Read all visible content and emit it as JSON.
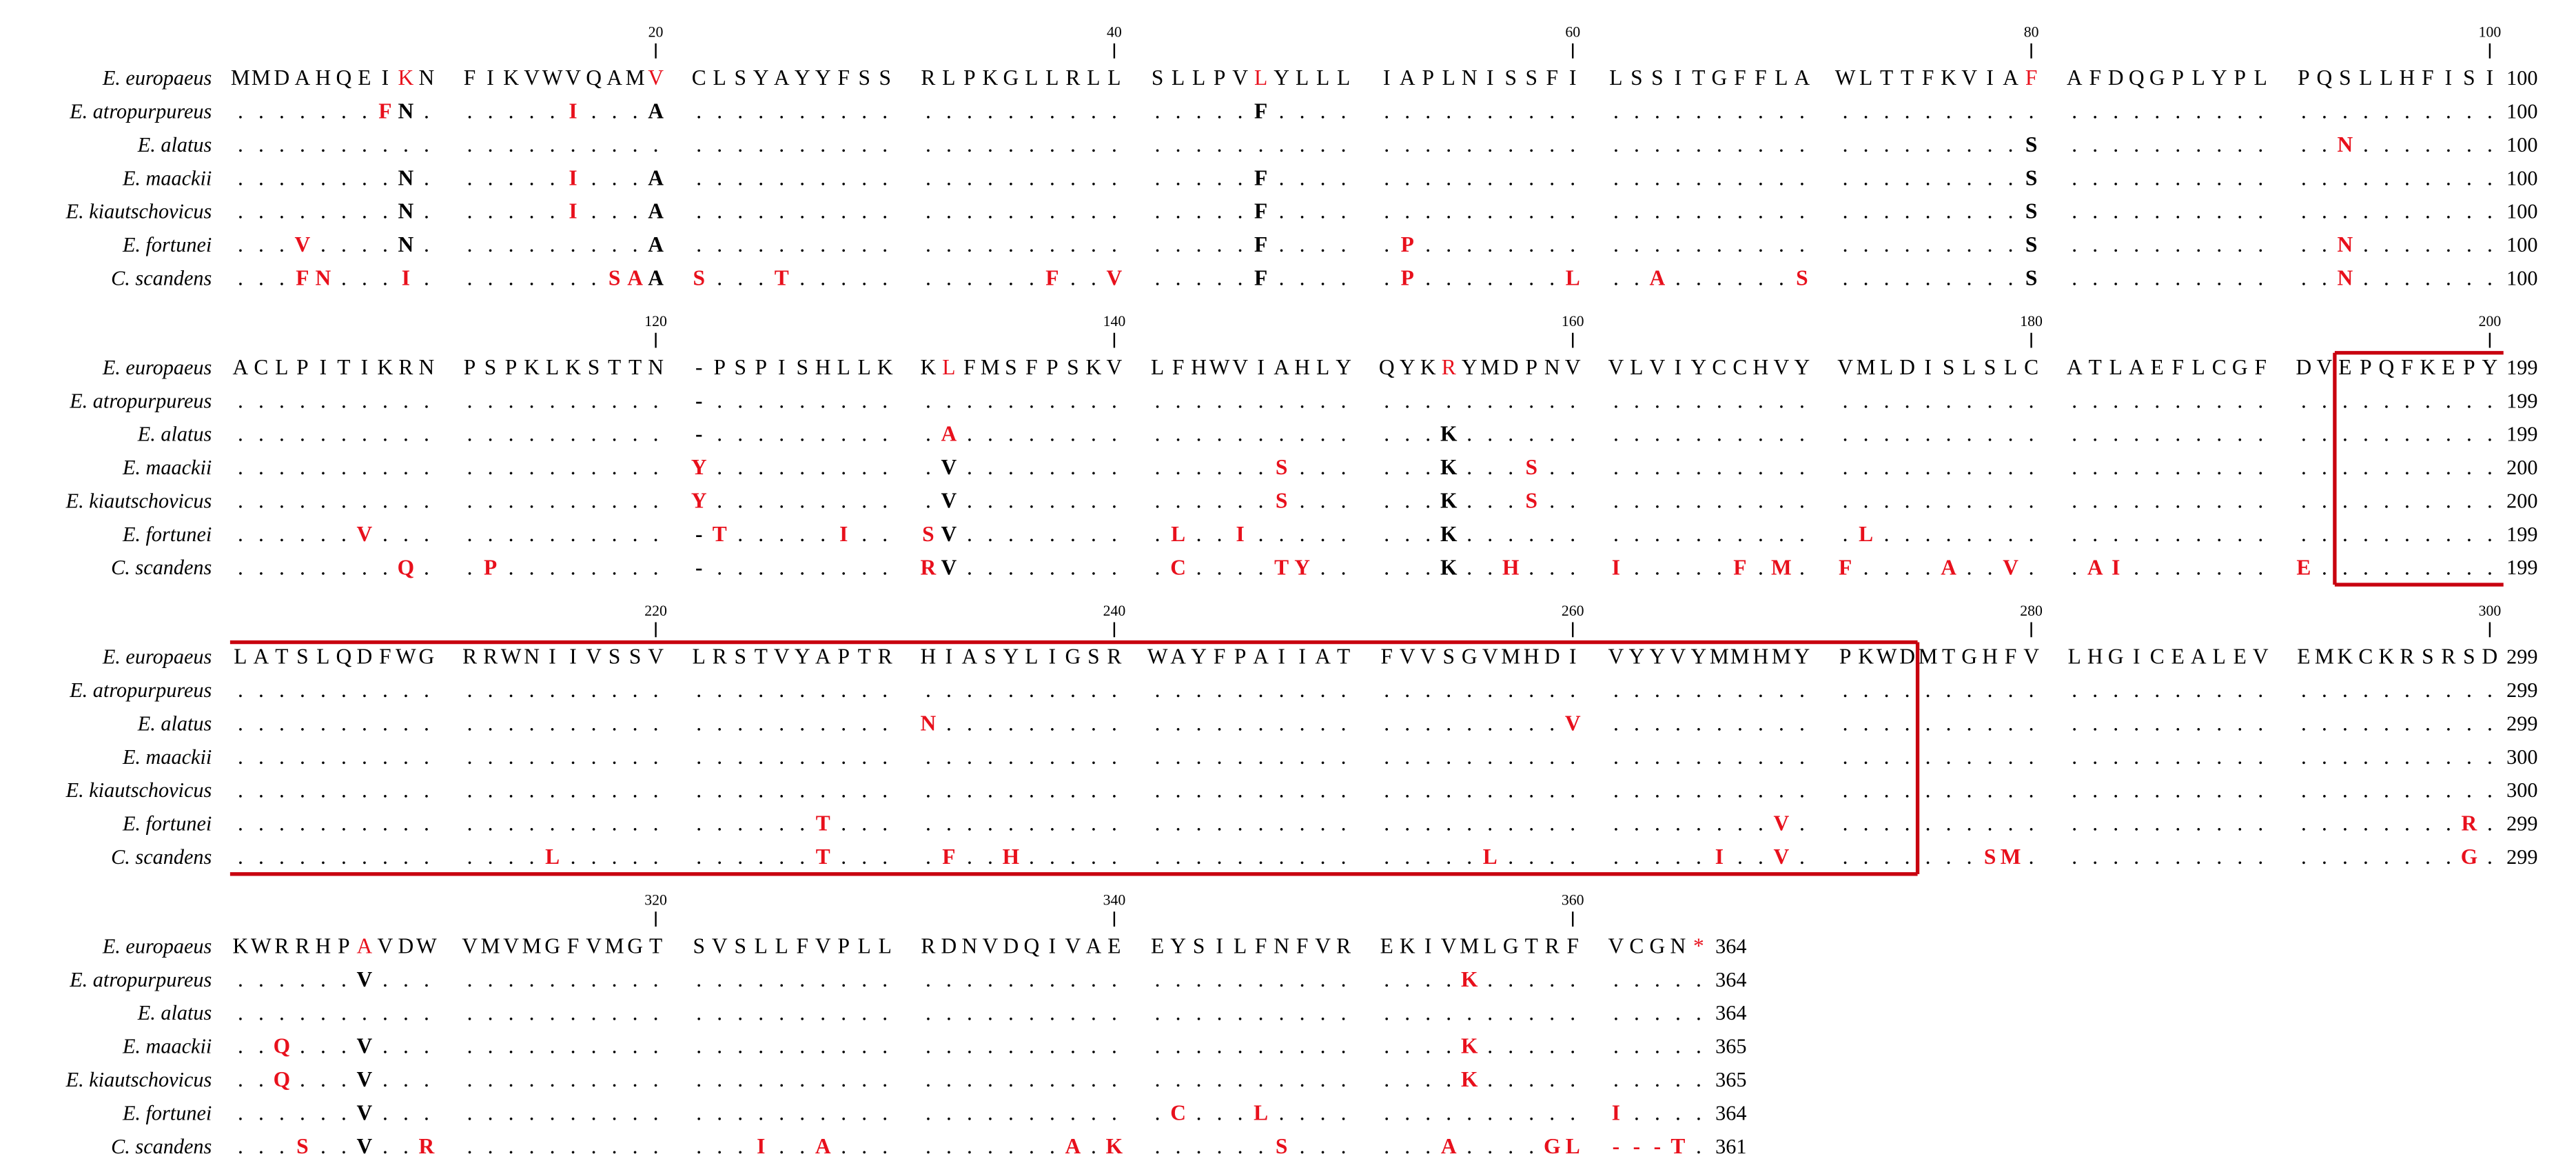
{
  "alignment": {
    "species": [
      "E. europaeus",
      "E. atropurpureus",
      "E. alatus",
      "E. maackii",
      "E. kiautschovicus",
      "E. fortunei",
      "C. scandens"
    ],
    "highlight_color": "#e8101c",
    "box_color": "#c8000f",
    "blocks": [
      {
        "ticks": [
          20,
          40,
          60,
          80,
          100
        ],
        "rows": [
          {
            "groups": [
              "MMDAHQEIKN",
              "FIKVWVQAMV",
              "CLSYAYYFSS",
              "RLPKGLLRLL",
              "SLLPVLYLLL",
              "IAPLNISSFI",
              "LSSITGFFLA",
              "WLTTFKVIAF",
              "AFDQGPLYPL",
              "PQSLLHFISI"
            ],
            "red": [
              9,
              20,
              46,
              80
            ],
            "count": 100
          },
          {
            "groups": [
              ".......FN.",
              ".....I...A",
              "..........",
              "..........",
              ".....F....",
              "..........",
              "..........",
              "..........",
              "..........",
              ".........."
            ],
            "red": [
              8,
              16
            ],
            "count": 100
          },
          {
            "groups": [
              "..........",
              "..........",
              "..........",
              "..........",
              "..........",
              "..........",
              "..........",
              ".........S",
              "..........",
              "..N......."
            ],
            "red": [
              93
            ],
            "count": 100
          },
          {
            "groups": [
              "........N.",
              ".....I...A",
              "..........",
              "..........",
              ".....F....",
              "..........",
              "..........",
              ".........S",
              "..........",
              ".........."
            ],
            "red": [
              16
            ],
            "count": 100
          },
          {
            "groups": [
              "........N.",
              ".....I...A",
              "..........",
              "..........",
              ".....F....",
              "..........",
              "..........",
              ".........S",
              "..........",
              ".........."
            ],
            "red": [
              16
            ],
            "count": 100
          },
          {
            "groups": [
              "...V....N.",
              ".........A",
              "..........",
              "..........",
              ".....F....",
              ".P........",
              "..........",
              ".........S",
              "..........",
              "..N......."
            ],
            "red": [
              4,
              52,
              93
            ],
            "count": 100
          },
          {
            "groups": [
              "...FN...I.",
              ".......SAA",
              "S...T.....",
              "......F..V",
              ".....F....",
              ".P.......L",
              "..A......S",
              ".........S",
              "..........",
              "..N......."
            ],
            "red": [
              4,
              5,
              9,
              18,
              19,
              21,
              25,
              37,
              40,
              52,
              60,
              63,
              70,
              93
            ],
            "count": 100
          }
        ]
      },
      {
        "ticks": [
          120,
          140,
          160,
          180,
          200
        ],
        "rows": [
          {
            "groups": [
              "ACLPITIKRN",
              "PSPKLKSTTN",
              "-PSPISHLLK",
              "KLFMSFPSKV",
              "LFHWVIAHLY",
              "QYKRYMDPNV",
              "VLVIYCCHVY",
              "VMLDISLSLC",
              "ATLAEFLCGF",
              "DVEPQFKEPY"
            ],
            "red": [
              32,
              54
            ],
            "count": 199
          },
          {
            "groups": [
              "..........",
              "..........",
              "-.........",
              "..........",
              "..........",
              "..........",
              "..........",
              "..........",
              "..........",
              ".........."
            ],
            "red": [],
            "count": 199
          },
          {
            "groups": [
              "..........",
              "..........",
              "-.........",
              ".A........",
              "..........",
              "...K......",
              "..........",
              "..........",
              "..........",
              ".........."
            ],
            "red": [
              32
            ],
            "count": 199
          },
          {
            "groups": [
              "..........",
              "..........",
              "Y.........",
              ".V........",
              "......S...",
              "...K...S..",
              "..........",
              "..........",
              "..........",
              ".........."
            ],
            "red": [
              21,
              47,
              58
            ],
            "count": 200
          },
          {
            "groups": [
              "..........",
              "..........",
              "Y.........",
              ".V........",
              "......S...",
              "...K...S..",
              "..........",
              "..........",
              "..........",
              ".........."
            ],
            "red": [
              21,
              47,
              58
            ],
            "count": 200
          },
          {
            "groups": [
              "......V...",
              "..........",
              "-T.....I..",
              "SV........",
              ".L..I.....",
              "...K......",
              "..........",
              ".L........",
              "..........",
              ".........."
            ],
            "red": [
              7,
              22,
              28,
              31,
              42,
              45,
              72
            ],
            "count": 199
          },
          {
            "groups": [
              "........Q.",
              ".P........",
              "-.........",
              "RV........",
              ".C....TY..",
              "...K..H...",
              "I.....F.M.",
              "F....A..V.",
              ".AI.......",
              "E........."
            ],
            "red": [
              9,
              12,
              31,
              42,
              47,
              48,
              57,
              61,
              67,
              69,
              71,
              76,
              79,
              82,
              83,
              91
            ],
            "count": 199
          }
        ]
      },
      {
        "ticks": [
          220,
          240,
          260,
          280,
          300
        ],
        "rows": [
          {
            "groups": [
              "LATSLQDFWG",
              "RRWNIIVSSV",
              "LRSTVYAPTR",
              "HIASYLIGSR",
              "WAYFPAIIAT",
              "FVVSGVMHDI",
              "VYYVYMMHMY",
              "PKWDMTGHFV",
              "LHGICEALEV",
              "EMKCKRSRSD"
            ],
            "red": [],
            "count": 299
          },
          {
            "groups": [
              "..........",
              "..........",
              "..........",
              "..........",
              "..........",
              "..........",
              "..........",
              "..........",
              "..........",
              ".........."
            ],
            "red": [],
            "count": 299
          },
          {
            "groups": [
              "..........",
              "..........",
              "..........",
              "N.........",
              "..........",
              ".........V",
              "..........",
              "..........",
              "..........",
              ".........."
            ],
            "red": [
              31,
              60
            ],
            "count": 299
          },
          {
            "groups": [
              "..........",
              "..........",
              "..........",
              "..........",
              "..........",
              "..........",
              "..........",
              "..........",
              "..........",
              ".........."
            ],
            "red": [],
            "count": 300
          },
          {
            "groups": [
              "..........",
              "..........",
              "..........",
              "..........",
              "..........",
              "..........",
              "..........",
              "..........",
              "..........",
              ".........."
            ],
            "red": [],
            "count": 300
          },
          {
            "groups": [
              "..........",
              "..........",
              "......T...",
              "..........",
              "..........",
              "..........",
              "........V.",
              "..........",
              "..........",
              "........R."
            ],
            "red": [
              27,
              69,
              99
            ],
            "count": 299
          },
          {
            "groups": [
              "..........",
              "....L.....",
              "......T...",
              ".F..H.....",
              "..........",
              ".....L....",
              ".....I..V.",
              ".......SM.",
              "..........",
              "........G."
            ],
            "red": [
              15,
              27,
              32,
              35,
              56,
              66,
              69,
              78,
              79,
              99
            ],
            "count": 299
          }
        ]
      },
      {
        "ticks": [
          320,
          340,
          360
        ],
        "rows": [
          {
            "groups": [
              "KWRRHPAVDW",
              "VMVMGFVMGT",
              "SVSLLFVPLL",
              "RDNVDQIVAE",
              "EYSILFNFVR",
              "EKIVMLGTRF",
              "VCGN*"
            ],
            "red": [
              7,
              65
            ],
            "count": 364
          },
          {
            "groups": [
              "......V...",
              "..........",
              "..........",
              "..........",
              "..........",
              "....K.....",
              "....."
            ],
            "red": [
              55
            ],
            "count": 364
          },
          {
            "groups": [
              "..........",
              "..........",
              "..........",
              "..........",
              "..........",
              "..........",
              "....."
            ],
            "red": [],
            "count": 364
          },
          {
            "groups": [
              "..Q...V...",
              "..........",
              "..........",
              "..........",
              "..........",
              "....K.....",
              "....."
            ],
            "red": [
              3,
              55
            ],
            "count": 365
          },
          {
            "groups": [
              "..Q...V...",
              "..........",
              "..........",
              "..........",
              "..........",
              "....K.....",
              "....."
            ],
            "red": [
              3,
              55
            ],
            "count": 365
          },
          {
            "groups": [
              "......V...",
              "..........",
              "..........",
              "..........",
              ".C...L....",
              "..........",
              "I...."
            ],
            "red": [
              42,
              46,
              61
            ],
            "count": 364
          },
          {
            "groups": [
              "...S..V..R",
              "..........",
              "...I..A...",
              ".......A.K",
              "......S...",
              "...A....GL",
              "---T."
            ],
            "red": [
              4,
              10,
              24,
              27,
              38,
              40,
              47,
              54,
              59,
              60,
              61,
              62,
              63,
              64
            ],
            "count": 361
          }
        ]
      }
    ]
  }
}
